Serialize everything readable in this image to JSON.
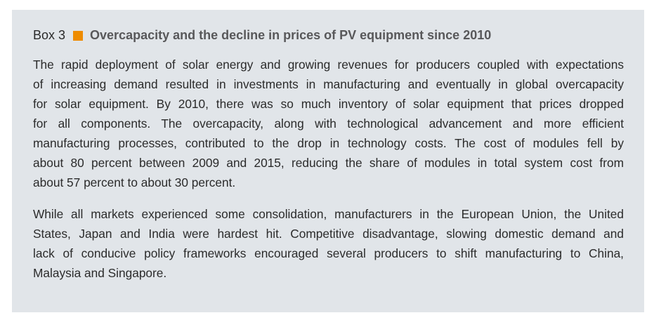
{
  "box": {
    "label": "Box 3",
    "marker_color": "#ee8c00",
    "title": "Overcapacity and the decline in prices of PV equipment since 2010",
    "paragraphs": [
      {
        "lines": [
          "The rapid deployment of solar energy and growing revenues for producers coupled with expectations",
          "of increasing demand resulted in investments in manufacturing and eventually in global overcapacity",
          "for solar equipment. By 2010, there was so much inventory of solar equipment that prices dropped",
          "for all components. The overcapacity, along with technological advancement and more efficient",
          "manufacturing processes, contributed to the drop in technology costs. The cost of modules fell by",
          "about 80 percent between 2009 and 2015, reducing the share of modules in total system cost from",
          "about 57 percent to about 30 percent."
        ]
      },
      {
        "lines": [
          "While all markets experienced some consolidation, manufacturers in the European Union, the United",
          "States, Japan and India were hardest hit. Competitive disadvantage, slowing domestic demand and",
          "lack of conducive policy frameworks encouraged several producers to shift manufacturing to China,",
          "Malaysia and Singapore."
        ]
      }
    ]
  }
}
